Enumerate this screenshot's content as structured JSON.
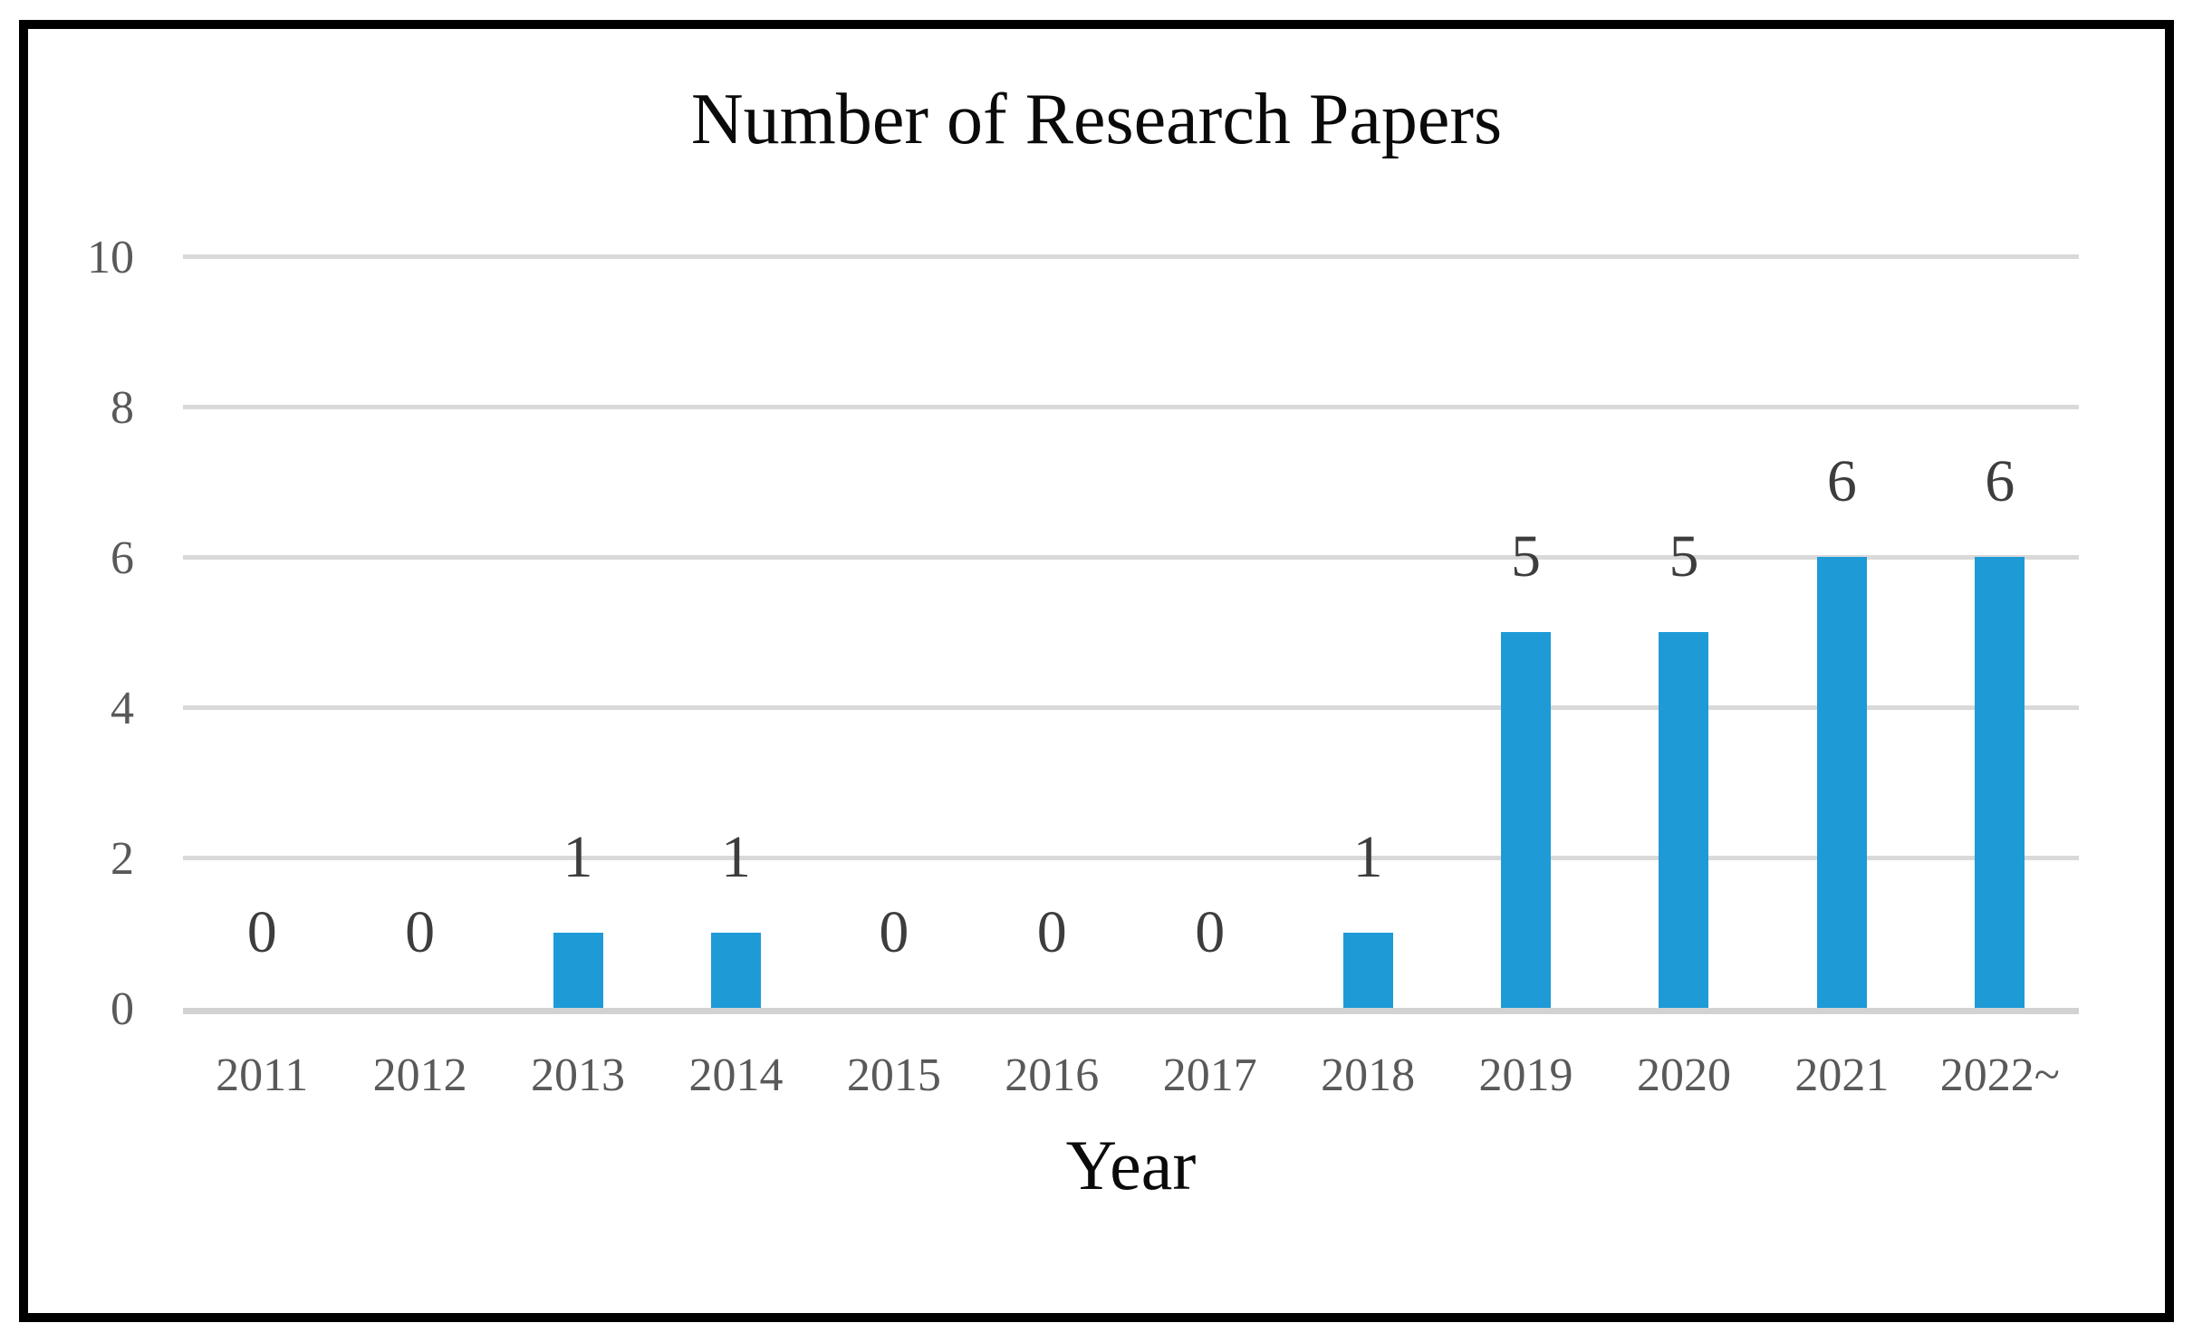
{
  "chart_data": {
    "type": "bar",
    "title": "Number of Research Papers",
    "xlabel": "Year",
    "ylabel": "",
    "categories": [
      "2011",
      "2012",
      "2013",
      "2014",
      "2015",
      "2016",
      "2017",
      "2018",
      "2019",
      "2020",
      "2021",
      "2022~"
    ],
    "values": [
      0,
      0,
      1,
      1,
      0,
      0,
      0,
      1,
      5,
      5,
      6,
      6
    ],
    "data_labels": [
      "0",
      "0",
      "1",
      "1",
      "0",
      "0",
      "0",
      "1",
      "5",
      "5",
      "6",
      "6"
    ],
    "ylim": [
      0,
      10
    ],
    "yticks": [
      0,
      2,
      4,
      6,
      8,
      10
    ],
    "grid": true,
    "legend": false
  },
  "colors": {
    "bar": "#1E9BD7",
    "gridline": "#D9D9D9",
    "axis_baseline": "#D2D2D2",
    "tick_text": "#595959",
    "data_label_text": "#3D3D3D",
    "title_text": "#0A0A0A",
    "frame_border": "#000000",
    "background": "#FFFFFF"
  }
}
